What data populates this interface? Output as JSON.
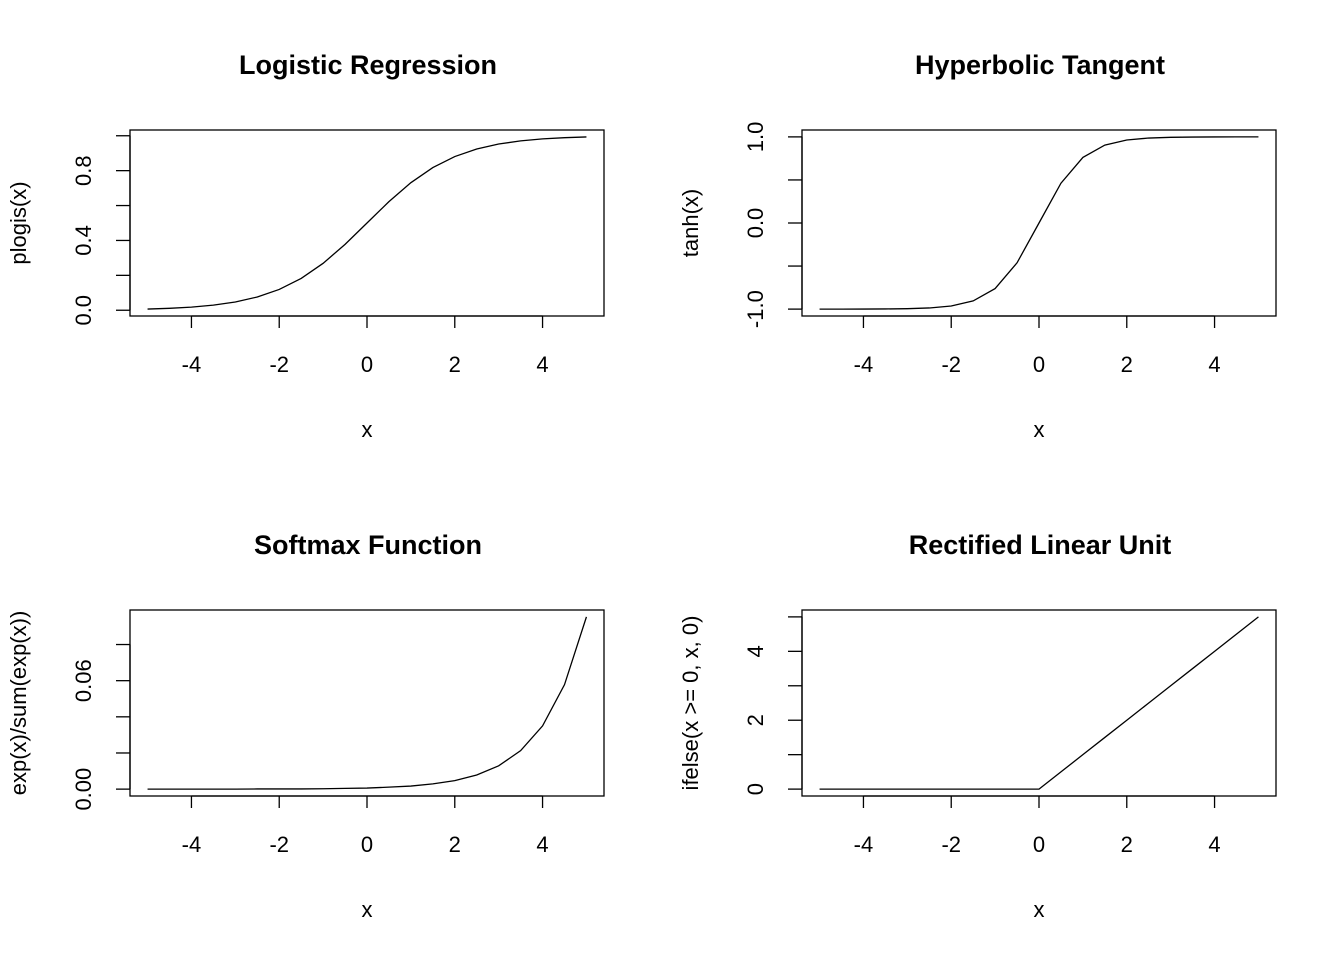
{
  "chart_data": [
    {
      "type": "line",
      "title": "Logistic Regression",
      "xlabel": "x",
      "ylabel": "plogis(x)",
      "color": "#000000",
      "x": [
        -5,
        -4.5,
        -4,
        -3.5,
        -3,
        -2.5,
        -2,
        -1.5,
        -1,
        -0.5,
        0,
        0.5,
        1,
        1.5,
        2,
        2.5,
        3,
        3.5,
        4,
        4.5,
        5
      ],
      "values": [
        0.0067,
        0.011,
        0.018,
        0.0293,
        0.0474,
        0.0759,
        0.1192,
        0.1824,
        0.2689,
        0.3775,
        0.5,
        0.6225,
        0.7311,
        0.8176,
        0.8808,
        0.9241,
        0.9526,
        0.9707,
        0.982,
        0.989,
        0.9933
      ],
      "xlim": [
        -5.4,
        5.4
      ],
      "ylim": [
        -0.033,
        1.033
      ],
      "xticks": [
        -4,
        -2,
        0,
        2,
        4
      ],
      "yticks": [
        {
          "value": 0,
          "label": "0.0"
        },
        0.4,
        0.8
      ],
      "minor_yticks": [
        0.2,
        0.6,
        1
      ]
    },
    {
      "type": "line",
      "title": "Hyperbolic Tangent",
      "xlabel": "x",
      "ylabel": "tanh(x)",
      "color": "#000000",
      "x": [
        -5,
        -4.5,
        -4,
        -3.5,
        -3,
        -2.5,
        -2,
        -1.5,
        -1,
        -0.5,
        0,
        0.5,
        1,
        1.5,
        2,
        2.5,
        3,
        3.5,
        4,
        4.5,
        5
      ],
      "values": [
        -0.9999,
        -0.9998,
        -0.9993,
        -0.9982,
        -0.9951,
        -0.9866,
        -0.964,
        -0.9051,
        -0.7616,
        -0.4621,
        0,
        0.4621,
        0.7616,
        0.9051,
        0.964,
        0.9866,
        0.9951,
        0.9982,
        0.9993,
        0.9998,
        0.9999
      ],
      "xlim": [
        -5.4,
        5.4
      ],
      "ylim": [
        -1.08,
        1.08
      ],
      "xticks": [
        -4,
        -2,
        0,
        2,
        4
      ],
      "yticks": [
        {
          "value": -1,
          "label": "-1.0"
        },
        {
          "value": 0,
          "label": "0.0"
        },
        {
          "value": 1,
          "label": "1.0"
        }
      ],
      "minor_yticks": [
        -0.5,
        0.5
      ]
    },
    {
      "type": "line",
      "title": "Softmax Function",
      "xlabel": "x",
      "ylabel": "exp(x)/sum(exp(x))",
      "color": "#000000",
      "x": [
        -5,
        -4.5,
        -4,
        -3.5,
        -3,
        -2.5,
        -2,
        -1.5,
        -1,
        -0.5,
        0,
        0.5,
        1,
        1.5,
        2,
        2.5,
        3,
        3.5,
        4,
        4.5,
        5
      ],
      "values": [
        0,
        0,
        0,
        0,
        0,
        0.0001,
        0.0001,
        0.0001,
        0.0002,
        0.0004,
        0.0006,
        0.0011,
        0.0017,
        0.0029,
        0.0047,
        0.0078,
        0.0129,
        0.0213,
        0.035,
        0.0578,
        0.0953
      ],
      "xlim": [
        -5.4,
        5.4
      ],
      "ylim": [
        -0.0038,
        0.0991
      ],
      "xticks": [
        -4,
        -2,
        0,
        2,
        4
      ],
      "yticks": [
        {
          "value": 0,
          "label": "0.00"
        },
        0.06
      ],
      "minor_yticks": [
        0.02,
        0.04,
        0.08
      ]
    },
    {
      "type": "line",
      "title": "Rectified Linear Unit",
      "xlabel": "x",
      "ylabel": "ifelse(x >= 0, x, 0)",
      "color": "#000000",
      "x": [
        -5,
        -4.5,
        -4,
        -3.5,
        -3,
        -2.5,
        -2,
        -1.5,
        -1,
        -0.5,
        0,
        0.5,
        1,
        1.5,
        2,
        2.5,
        3,
        3.5,
        4,
        4.5,
        5
      ],
      "values": [
        0,
        0,
        0,
        0,
        0,
        0,
        0,
        0,
        0,
        0,
        0,
        0.5,
        1,
        1.5,
        2,
        2.5,
        3,
        3.5,
        4,
        4.5,
        5
      ],
      "xlim": [
        -5.4,
        5.4
      ],
      "ylim": [
        -0.2,
        5.2
      ],
      "xticks": [
        -4,
        -2,
        0,
        2,
        4
      ],
      "yticks": [
        0,
        2,
        4
      ],
      "minor_yticks": [
        1,
        3,
        5
      ]
    }
  ]
}
